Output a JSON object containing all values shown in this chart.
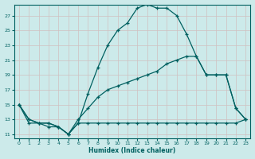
{
  "xlabel": "Humidex (Indice chaleur)",
  "bg_color": "#cceaea",
  "grid_color": "#b8d8d8",
  "line_color": "#006060",
  "xlim": [
    -0.5,
    23.5
  ],
  "ylim": [
    10.5,
    28.5
  ],
  "xticks": [
    0,
    1,
    2,
    3,
    4,
    5,
    6,
    7,
    8,
    9,
    10,
    11,
    12,
    13,
    14,
    15,
    16,
    17,
    18,
    19,
    20,
    21,
    22,
    23
  ],
  "yticks": [
    11,
    13,
    15,
    17,
    19,
    21,
    23,
    25,
    27
  ],
  "curve_max_x": [
    0,
    1,
    2,
    3,
    4,
    5,
    6,
    7,
    8,
    9,
    10,
    11,
    12,
    13,
    14,
    15,
    16,
    17,
    18,
    19,
    20,
    21,
    22,
    23
  ],
  "curve_max_y": [
    15,
    13,
    12.5,
    12.5,
    12.0,
    11.0,
    12.5,
    16.5,
    20.0,
    23.0,
    25.0,
    26.0,
    28.0,
    28.5,
    28.0,
    28.0,
    27.0,
    24.5,
    21.5,
    19.0,
    19.0,
    19.0,
    14.5,
    13.0
  ],
  "curve_mean_x": [
    0,
    1,
    2,
    3,
    4,
    5,
    6,
    7,
    8,
    9,
    10,
    11,
    12,
    13,
    14,
    15,
    16,
    17,
    18,
    19,
    20,
    21,
    22,
    23
  ],
  "curve_mean_y": [
    15,
    13,
    12.5,
    12.5,
    12.0,
    11.0,
    13.0,
    14.5,
    16.0,
    17.0,
    17.5,
    18.0,
    18.5,
    19.0,
    19.5,
    20.5,
    21.0,
    21.5,
    21.5,
    19.0,
    19.0,
    19.0,
    14.5,
    13.0
  ],
  "curve_min_x": [
    0,
    1,
    2,
    3,
    4,
    5,
    6,
    7,
    8,
    9,
    10,
    11,
    12,
    13,
    14,
    15,
    16,
    17,
    18,
    19,
    20,
    21,
    22,
    23
  ],
  "curve_min_y": [
    15,
    12.5,
    12.5,
    12.0,
    12.0,
    11.0,
    12.5,
    12.5,
    12.5,
    12.5,
    12.5,
    12.5,
    12.5,
    12.5,
    12.5,
    12.5,
    12.5,
    12.5,
    12.5,
    12.5,
    12.5,
    12.5,
    12.5,
    13.0
  ]
}
